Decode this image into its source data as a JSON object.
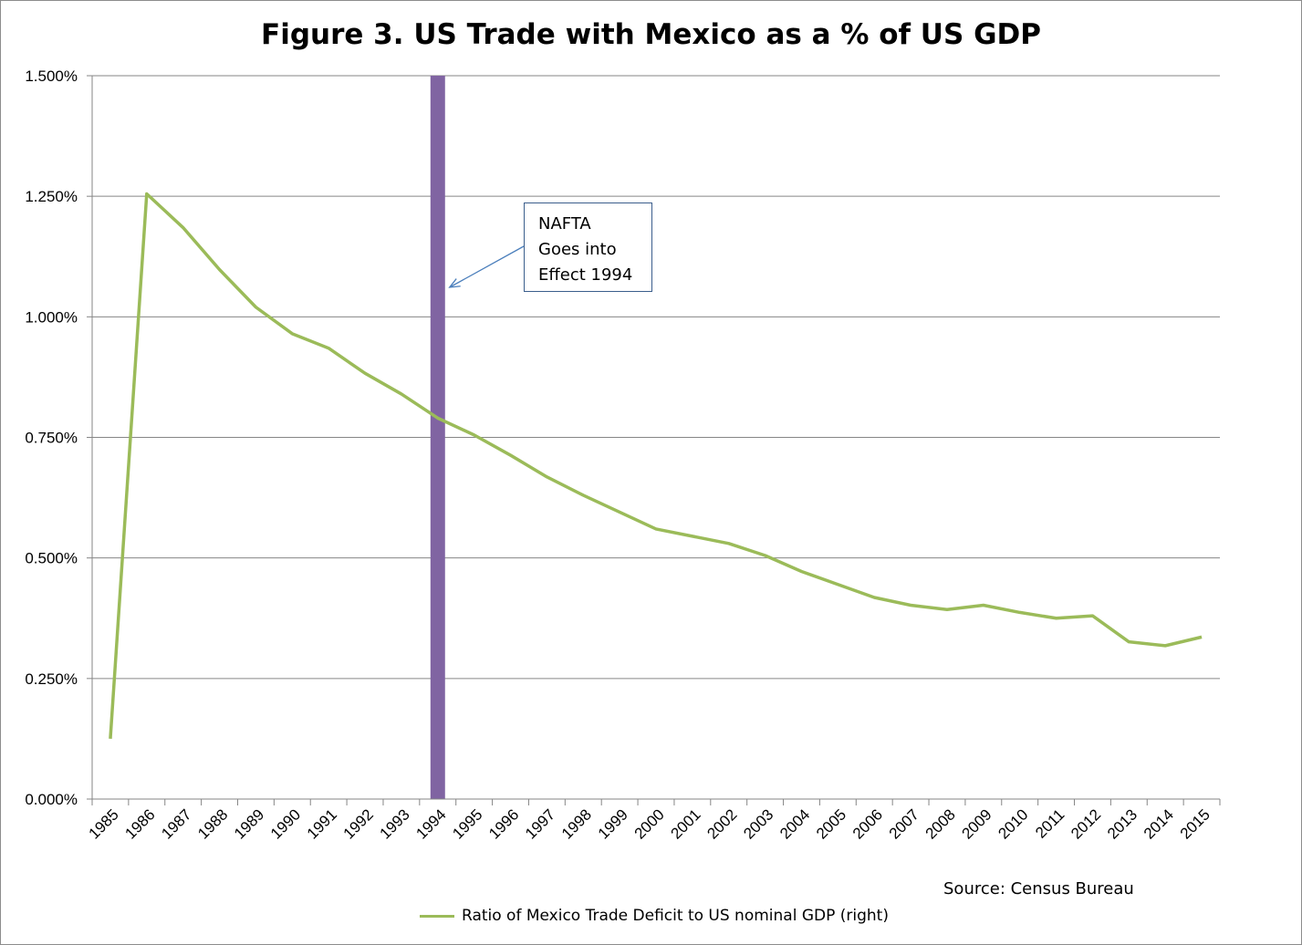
{
  "chart_data": {
    "type": "line",
    "title": "Figure 3. US Trade with Mexico as a % of US GDP",
    "xlabel": "",
    "ylabel": "",
    "categories": [
      "1985",
      "1986",
      "1987",
      "1988",
      "1989",
      "1990",
      "1991",
      "1992",
      "1993",
      "1994",
      "1995",
      "1996",
      "1997",
      "1998",
      "1999",
      "2000",
      "2001",
      "2002",
      "2003",
      "2004",
      "2005",
      "2006",
      "2007",
      "2008",
      "2009",
      "2010",
      "2011",
      "2012",
      "2013",
      "2014",
      "2015"
    ],
    "series": [
      {
        "name": "Ratio of Mexico Trade Deficit to US nominal GDP (right)",
        "color": "#9bbb59",
        "values": [
          0.125,
          1.255,
          1.185,
          1.098,
          1.02,
          0.965,
          0.935,
          0.883,
          0.84,
          0.79,
          0.755,
          0.713,
          0.668,
          0.63,
          0.595,
          0.56,
          0.545,
          0.53,
          0.505,
          0.472,
          0.445,
          0.418,
          0.402,
          0.393,
          0.402,
          0.387,
          0.375,
          0.38,
          0.326,
          0.318,
          0.336
        ]
      }
    ],
    "ylim": [
      0,
      1.5
    ],
    "yticks": [
      0,
      0.25,
      0.5,
      0.75,
      1.0,
      1.25,
      1.5
    ],
    "ytick_labels": [
      "0.000%",
      "0.250%",
      "0.500%",
      "0.750%",
      "1.000%",
      "1.250%",
      "1.500%"
    ],
    "grid": true,
    "legend_position": "bottom",
    "highlight": {
      "category": "1994",
      "color": "#8064a2"
    },
    "annotation": {
      "lines": [
        "NAFTA",
        "Goes into",
        "Effect 1994"
      ],
      "points_to": "1994"
    },
    "source": "Source: Census Bureau"
  }
}
